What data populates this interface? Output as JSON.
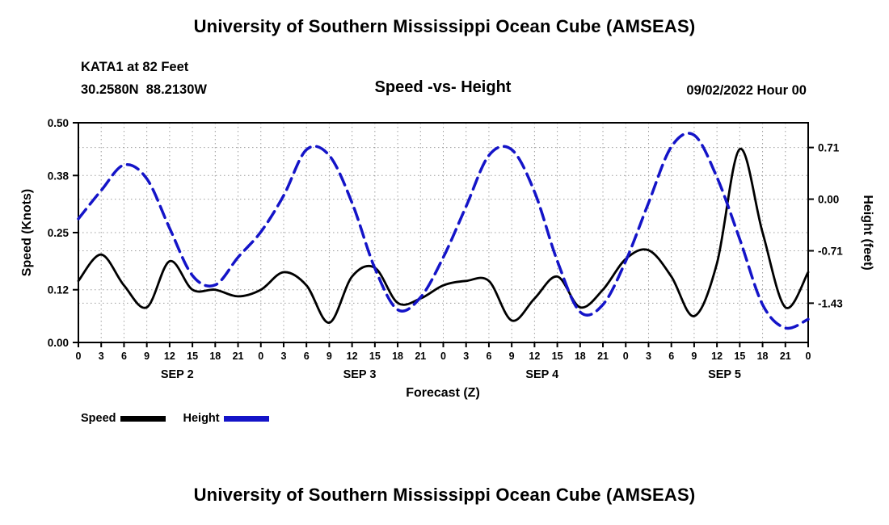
{
  "page": {
    "title_top": "University of Southern Mississippi Ocean Cube (AMSEAS)",
    "title_bottom": "University of Southern Mississippi Ocean Cube (AMSEAS)"
  },
  "header": {
    "station_line1": "KATA1 at 82 Feet",
    "station_line2": "30.2580N  88.2130W",
    "chart_title": "Speed -vs- Height",
    "datetime": "09/02/2022 Hour 00"
  },
  "legend": {
    "speed_label": "Speed",
    "height_label": "Height"
  },
  "colors": {
    "speed_line": "#000000",
    "height_line": "#1414c8",
    "grid": "#9c9c9c",
    "text": "#000000"
  },
  "chart_data": {
    "type": "line",
    "title": "Speed -vs- Height",
    "xlabel": "Forecast (Z)",
    "ylabel_left": "Speed (Knots)",
    "ylabel_right": "Height (feet)",
    "grid": true,
    "legend_position": "bottom-left",
    "x_hours": [
      0,
      3,
      6,
      9,
      12,
      15,
      18,
      21,
      24,
      27,
      30,
      33,
      36,
      39,
      42,
      45,
      48,
      51,
      54,
      57,
      60,
      63,
      66,
      69,
      72,
      75,
      78,
      81,
      84,
      87,
      90,
      93,
      96
    ],
    "x_tick_labels": [
      "0",
      "3",
      "6",
      "9",
      "12",
      "15",
      "18",
      "21",
      "0",
      "3",
      "6",
      "9",
      "12",
      "15",
      "18",
      "21",
      "0",
      "3",
      "6",
      "9",
      "12",
      "15",
      "18",
      "21",
      "0",
      "3",
      "6",
      "9",
      "12",
      "15",
      "18",
      "21",
      "0"
    ],
    "day_labels": [
      "SEP 2",
      "SEP 3",
      "SEP 4",
      "SEP 5"
    ],
    "ylim_left": [
      0,
      0.5
    ],
    "yticks_left": [
      0.0,
      0.12,
      0.25,
      0.38,
      0.5
    ],
    "ytick_labels_left": [
      "0.00",
      "0.12",
      "0.25",
      "0.38",
      "0.50"
    ],
    "ylim_right": [
      -1.97,
      1.05
    ],
    "yticks_right": [
      0.71,
      0.0,
      -0.71,
      -1.43
    ],
    "ytick_labels_right": [
      "0.71",
      "0.00",
      "-0.71",
      "-1.43"
    ],
    "series": [
      {
        "name": "Speed",
        "axis": "left",
        "style": "solid",
        "values": [
          0.14,
          0.2,
          0.13,
          0.08,
          0.185,
          0.12,
          0.12,
          0.105,
          0.12,
          0.16,
          0.13,
          0.045,
          0.15,
          0.17,
          0.09,
          0.1,
          0.13,
          0.14,
          0.14,
          0.05,
          0.1,
          0.15,
          0.08,
          0.12,
          0.19,
          0.21,
          0.15,
          0.06,
          0.18,
          0.44,
          0.25,
          0.08,
          0.16
        ]
      },
      {
        "name": "Height",
        "axis": "right",
        "style": "dashed",
        "values": [
          -0.27,
          0.12,
          0.47,
          0.28,
          -0.4,
          -1.05,
          -1.18,
          -0.8,
          -0.45,
          0.05,
          0.68,
          0.6,
          -0.05,
          -0.95,
          -1.52,
          -1.35,
          -0.8,
          -0.1,
          0.6,
          0.68,
          0.1,
          -0.85,
          -1.55,
          -1.45,
          -0.85,
          -0.05,
          0.72,
          0.88,
          0.3,
          -0.55,
          -1.45,
          -1.77,
          -1.65
        ]
      }
    ]
  }
}
